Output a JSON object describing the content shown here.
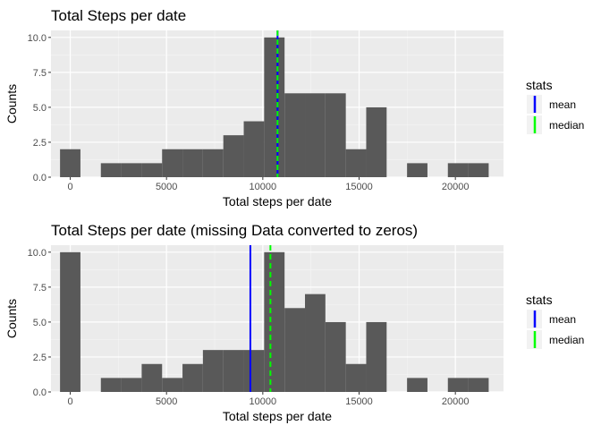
{
  "chart_data": [
    {
      "type": "bar",
      "title": "Total Steps per date",
      "xlabel": "Total steps per date",
      "ylabel": "Counts",
      "xlim": [
        -1000,
        22500
      ],
      "ylim": [
        0,
        10.5
      ],
      "xticks": [
        0,
        5000,
        10000,
        15000,
        20000
      ],
      "xtick_labels": [
        "0",
        "5000",
        "10000",
        "15000",
        "20000"
      ],
      "yticks": [
        0,
        2.5,
        5,
        7.5,
        10
      ],
      "ytick_labels": [
        "0.0",
        "2.5",
        "5.0",
        "7.5",
        "10.0"
      ],
      "grid": true,
      "bins": [
        {
          "x0": -530,
          "x1": 530,
          "count": 2
        },
        {
          "x0": 1590,
          "x1": 2650,
          "count": 1
        },
        {
          "x0": 2650,
          "x1": 3710,
          "count": 1
        },
        {
          "x0": 3710,
          "x1": 4770,
          "count": 1
        },
        {
          "x0": 4770,
          "x1": 5830,
          "count": 2
        },
        {
          "x0": 5830,
          "x1": 6890,
          "count": 2
        },
        {
          "x0": 6890,
          "x1": 7950,
          "count": 2
        },
        {
          "x0": 7950,
          "x1": 9010,
          "count": 3
        },
        {
          "x0": 9010,
          "x1": 10070,
          "count": 4
        },
        {
          "x0": 10070,
          "x1": 11130,
          "count": 10
        },
        {
          "x0": 11130,
          "x1": 12190,
          "count": 6
        },
        {
          "x0": 12190,
          "x1": 13250,
          "count": 6
        },
        {
          "x0": 13250,
          "x1": 14310,
          "count": 6
        },
        {
          "x0": 14310,
          "x1": 15370,
          "count": 2
        },
        {
          "x0": 15370,
          "x1": 16430,
          "count": 5
        },
        {
          "x0": 17490,
          "x1": 18550,
          "count": 1
        },
        {
          "x0": 19610,
          "x1": 20670,
          "count": 1
        },
        {
          "x0": 20670,
          "x1": 21730,
          "count": 1
        }
      ],
      "lines": [
        {
          "name": "mean",
          "x": 10766,
          "color": "#0000ff",
          "dash": false
        },
        {
          "name": "median",
          "x": 10765,
          "color": "#00ff00",
          "dash": true
        }
      ],
      "bar_color": "#595959",
      "legend": {
        "title": "stats",
        "position": "right",
        "items": [
          "mean",
          "median"
        ]
      }
    },
    {
      "type": "bar",
      "title": "Total Steps per date (missing Data converted to zeros)",
      "xlabel": "Total steps per date",
      "ylabel": "Counts",
      "xlim": [
        -1000,
        22500
      ],
      "ylim": [
        0,
        10.5
      ],
      "xticks": [
        0,
        5000,
        10000,
        15000,
        20000
      ],
      "xtick_labels": [
        "0",
        "5000",
        "10000",
        "15000",
        "20000"
      ],
      "yticks": [
        0,
        2.5,
        5,
        7.5,
        10
      ],
      "ytick_labels": [
        "0.0",
        "2.5",
        "5.0",
        "7.5",
        "10.0"
      ],
      "grid": true,
      "bins": [
        {
          "x0": -530,
          "x1": 530,
          "count": 10
        },
        {
          "x0": 1590,
          "x1": 2650,
          "count": 1
        },
        {
          "x0": 2650,
          "x1": 3710,
          "count": 1
        },
        {
          "x0": 3710,
          "x1": 4770,
          "count": 2
        },
        {
          "x0": 4770,
          "x1": 5830,
          "count": 1
        },
        {
          "x0": 5830,
          "x1": 6890,
          "count": 2
        },
        {
          "x0": 6890,
          "x1": 7950,
          "count": 3
        },
        {
          "x0": 7950,
          "x1": 9010,
          "count": 3
        },
        {
          "x0": 9010,
          "x1": 10070,
          "count": 3
        },
        {
          "x0": 10070,
          "x1": 11130,
          "count": 10
        },
        {
          "x0": 11130,
          "x1": 12190,
          "count": 6
        },
        {
          "x0": 12190,
          "x1": 13250,
          "count": 7
        },
        {
          "x0": 13250,
          "x1": 14310,
          "count": 5
        },
        {
          "x0": 14310,
          "x1": 15370,
          "count": 2
        },
        {
          "x0": 15370,
          "x1": 16430,
          "count": 5
        },
        {
          "x0": 17490,
          "x1": 18550,
          "count": 1
        },
        {
          "x0": 19610,
          "x1": 20670,
          "count": 1
        },
        {
          "x0": 20670,
          "x1": 21730,
          "count": 1
        }
      ],
      "lines": [
        {
          "name": "mean",
          "x": 9354,
          "color": "#0000ff",
          "dash": false
        },
        {
          "name": "median",
          "x": 10395,
          "color": "#00ff00",
          "dash": true
        }
      ],
      "bar_color": "#595959",
      "legend": {
        "title": "stats",
        "position": "right",
        "items": [
          "mean",
          "median"
        ]
      }
    }
  ]
}
